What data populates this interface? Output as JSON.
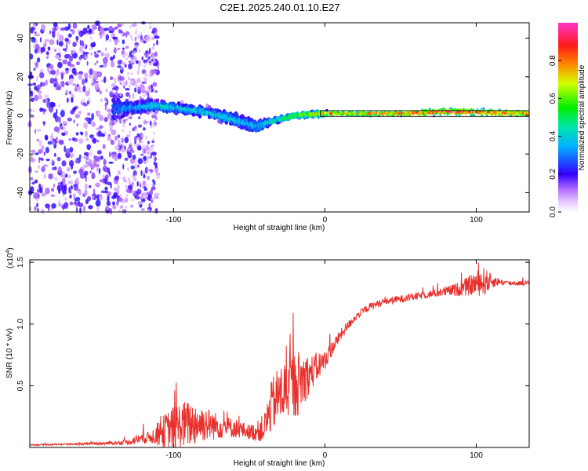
{
  "title": "C2E1.2025.240.01.10.E27",
  "chart_data": [
    {
      "type": "heatmap",
      "name": "spectrogram",
      "xlabel": "Height of straight line (km)",
      "ylabel": "Frequency (Hz)",
      "xlim": [
        -195,
        135
      ],
      "ylim": [
        -50,
        48
      ],
      "xticks": [
        -100,
        0,
        100
      ],
      "yticks": [
        -40,
        -20,
        0,
        20,
        40
      ],
      "colorbar": {
        "label": "Normalized spectral amplitude",
        "range": [
          0.0,
          1.0
        ],
        "ticks": [
          "0.0",
          "0.2",
          "0.4",
          "0.6",
          "0.8"
        ],
        "tick_values": [
          0.0,
          0.2,
          0.4,
          0.6,
          0.8
        ]
      },
      "description_points": [
        {
          "x": -190,
          "freq_center": 0,
          "spread": 48,
          "amp": 0.2
        },
        {
          "x": -130,
          "freq_center": 4,
          "spread": 6,
          "amp": 0.35
        },
        {
          "x": -110,
          "freq_center": 5,
          "spread": 4,
          "amp": 0.45
        },
        {
          "x": -80,
          "freq_center": 2,
          "spread": 4,
          "amp": 0.45
        },
        {
          "x": -60,
          "freq_center": -2,
          "spread": 5,
          "amp": 0.45
        },
        {
          "x": -45,
          "freq_center": -6,
          "spread": 6,
          "amp": 0.4
        },
        {
          "x": -35,
          "freq_center": -3,
          "spread": 2,
          "amp": 0.5
        },
        {
          "x": -20,
          "freq_center": 0,
          "spread": 2,
          "amp": 0.6
        },
        {
          "x": 0,
          "freq_center": 1,
          "spread": 2,
          "amp": 0.8
        },
        {
          "x": 50,
          "freq_center": 1,
          "spread": 2,
          "amp": 0.9
        },
        {
          "x": 80,
          "freq_center": 2,
          "spread": 3,
          "amp": 0.95
        },
        {
          "x": 135,
          "freq_center": 1,
          "spread": 2,
          "amp": 0.9
        }
      ]
    },
    {
      "type": "line",
      "name": "snr",
      "xlabel": "Height of straight line (km)",
      "ylabel": "SNR (10 * v/v)",
      "scale_label": "(x10",
      "scale_exp": "4",
      "scale_close": ")",
      "xlim": [
        -195,
        135
      ],
      "ylim": [
        0,
        1.52
      ],
      "xticks": [
        -100,
        0,
        100
      ],
      "yticks": [
        0.5,
        1.0,
        1.5
      ],
      "ytick_labels": [
        "0.5",
        "1.0",
        "1.5"
      ],
      "color": "#e8302c",
      "envelope": {
        "x": [
          -195,
          -150,
          -130,
          -125,
          -115,
          -105,
          -100,
          -95,
          -85,
          -80,
          -70,
          -60,
          -50,
          -45,
          -40,
          -35,
          -30,
          -25,
          -20,
          -15,
          -10,
          -5,
          0,
          5,
          10,
          15,
          20,
          25,
          30,
          35,
          40,
          50,
          60,
          70,
          80,
          90,
          95,
          100,
          105,
          110,
          115,
          120,
          135
        ],
        "base": [
          0.02,
          0.03,
          0.04,
          0.06,
          0.08,
          0.12,
          0.14,
          0.16,
          0.18,
          0.18,
          0.16,
          0.15,
          0.12,
          0.12,
          0.15,
          0.32,
          0.4,
          0.45,
          0.48,
          0.52,
          0.58,
          0.64,
          0.7,
          0.8,
          0.9,
          0.98,
          1.05,
          1.1,
          1.14,
          1.16,
          1.18,
          1.2,
          1.22,
          1.24,
          1.26,
          1.28,
          1.3,
          1.32,
          1.33,
          1.34,
          1.34,
          1.33,
          1.33
        ],
        "noise": [
          0.005,
          0.01,
          0.02,
          0.04,
          0.05,
          0.15,
          0.18,
          0.2,
          0.18,
          0.15,
          0.1,
          0.08,
          0.06,
          0.08,
          0.12,
          0.22,
          0.25,
          0.25,
          0.28,
          0.25,
          0.15,
          0.12,
          0.08,
          0.06,
          0.05,
          0.04,
          0.03,
          0.03,
          0.03,
          0.03,
          0.03,
          0.03,
          0.03,
          0.03,
          0.04,
          0.06,
          0.08,
          0.1,
          0.12,
          0.06,
          0.03,
          0.02,
          0.02
        ]
      }
    }
  ]
}
